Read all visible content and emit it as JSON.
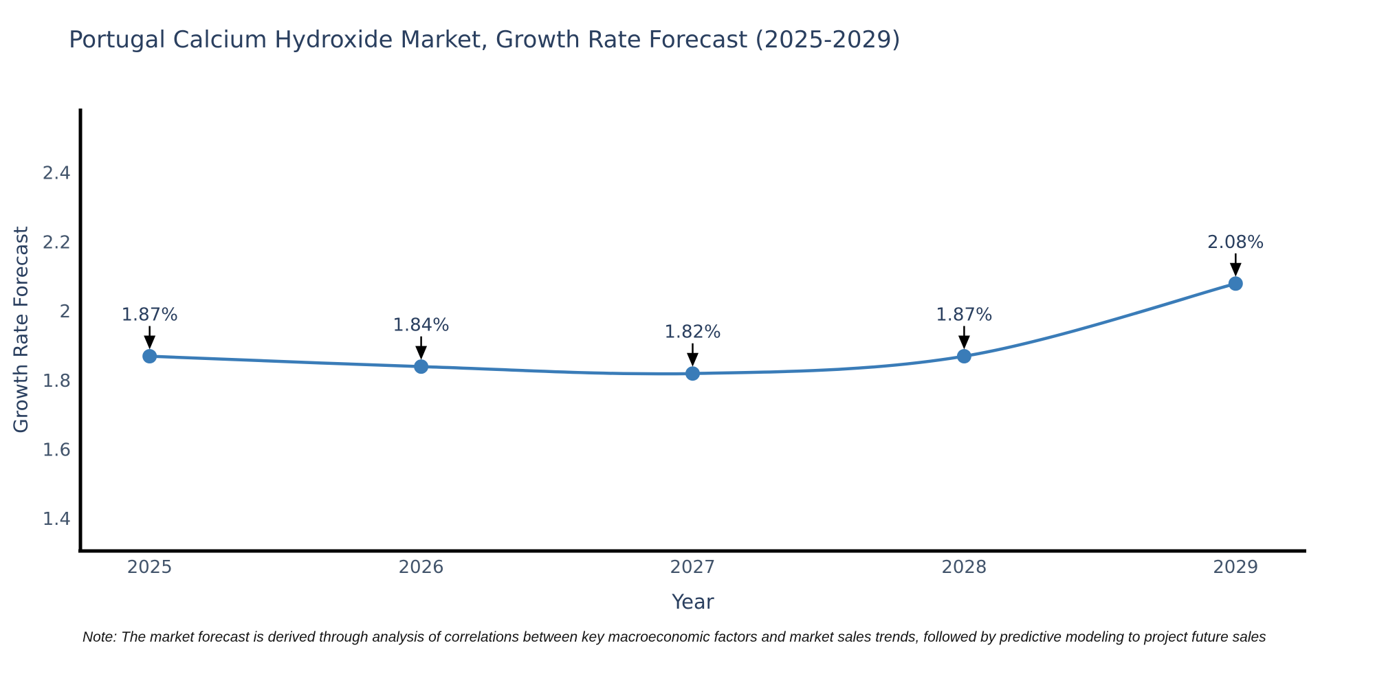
{
  "title": "Portugal Calcium Hydroxide Market, Growth Rate Forecast (2025-2029)",
  "footnote": "Note: The market forecast is derived through analysis of correlations between key macroeconomic factors and market sales trends, followed by predictive modeling to project future sales",
  "chart_data": {
    "type": "line",
    "title": "Portugal Calcium Hydroxide Market, Growth Rate Forecast (2025-2029)",
    "xlabel": "Year",
    "ylabel": "Growth Rate Forecast",
    "x": [
      2025,
      2026,
      2027,
      2028,
      2029
    ],
    "series": [
      {
        "name": "Growth Rate Forecast",
        "values": [
          1.87,
          1.84,
          1.82,
          1.87,
          2.08
        ]
      }
    ],
    "point_labels": [
      "1.87%",
      "1.84%",
      "1.82%",
      "1.87%",
      "2.08%"
    ],
    "xtick_labels": [
      "2025",
      "2026",
      "2027",
      "2028",
      "2029"
    ],
    "ytick_values": [
      1.4,
      1.6,
      1.8,
      2.0,
      2.2,
      2.4
    ],
    "ytick_labels": [
      "1.4",
      "1.6",
      "1.8",
      "2",
      "2.2",
      "2.4"
    ],
    "xlim": [
      2024.74,
      2029.26
    ],
    "ylim": [
      1.307,
      2.586
    ],
    "grid": false,
    "legend": "none",
    "line_shape": "spline",
    "annotation_arrows": true,
    "colors": {
      "line": "#3a7cb8",
      "marker": "#3a7cb8",
      "axis_line": "#000000",
      "title_text": "#2a3f5f",
      "tick_text": "#42546b",
      "annotation_text": "#2a3f5f",
      "arrow": "#000000",
      "background": "#ffffff"
    }
  }
}
